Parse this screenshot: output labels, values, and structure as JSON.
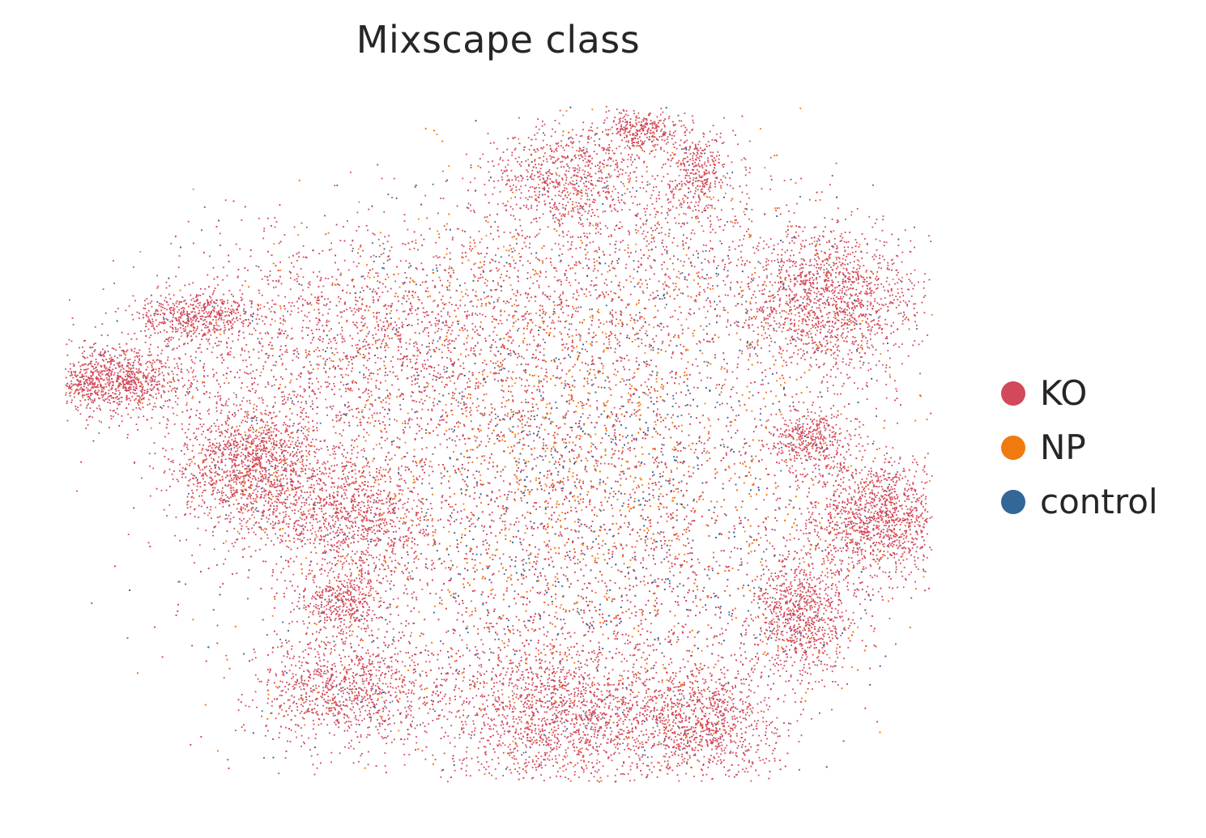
{
  "chart_data": {
    "type": "scatter",
    "title": "Mixscape class",
    "xlabel": "",
    "ylabel": "",
    "grid": false,
    "axes_visible": false,
    "legend_placement": "right",
    "series": [
      {
        "name": "KO",
        "color": "#d1495b"
      },
      {
        "name": "NP",
        "color": "#f07a10"
      },
      {
        "name": "control",
        "color": "#336699"
      }
    ]
  }
}
